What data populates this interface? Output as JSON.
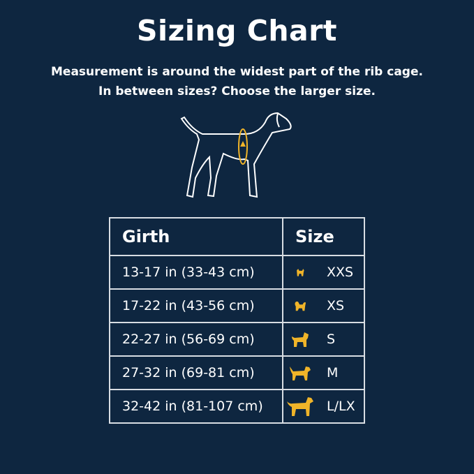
{
  "title": "Sizing Chart",
  "subtitle_line1": "Measurement is around the widest part of the rib cage.",
  "subtitle_line2": "In between sizes? Choose the larger size.",
  "accent_color": "#f0b429",
  "table": {
    "headers": [
      "Girth",
      "Size"
    ],
    "rows": [
      {
        "girth": "13-17 in (33-43 cm)",
        "size": "XXS",
        "icon": "tiny-dog-icon"
      },
      {
        "girth": "17-22 in (43-56 cm)",
        "size": "XS",
        "icon": "fluffy-small-dog-icon"
      },
      {
        "girth": "22-27 in (56-69 cm)",
        "size": "S",
        "icon": "curly-dog-icon"
      },
      {
        "girth": "27-32 in (69-81 cm)",
        "size": "M",
        "icon": "medium-dog-icon"
      },
      {
        "girth": "32-42 in (81-107 cm)",
        "size": "L/LX",
        "icon": "large-dog-icon"
      }
    ]
  }
}
